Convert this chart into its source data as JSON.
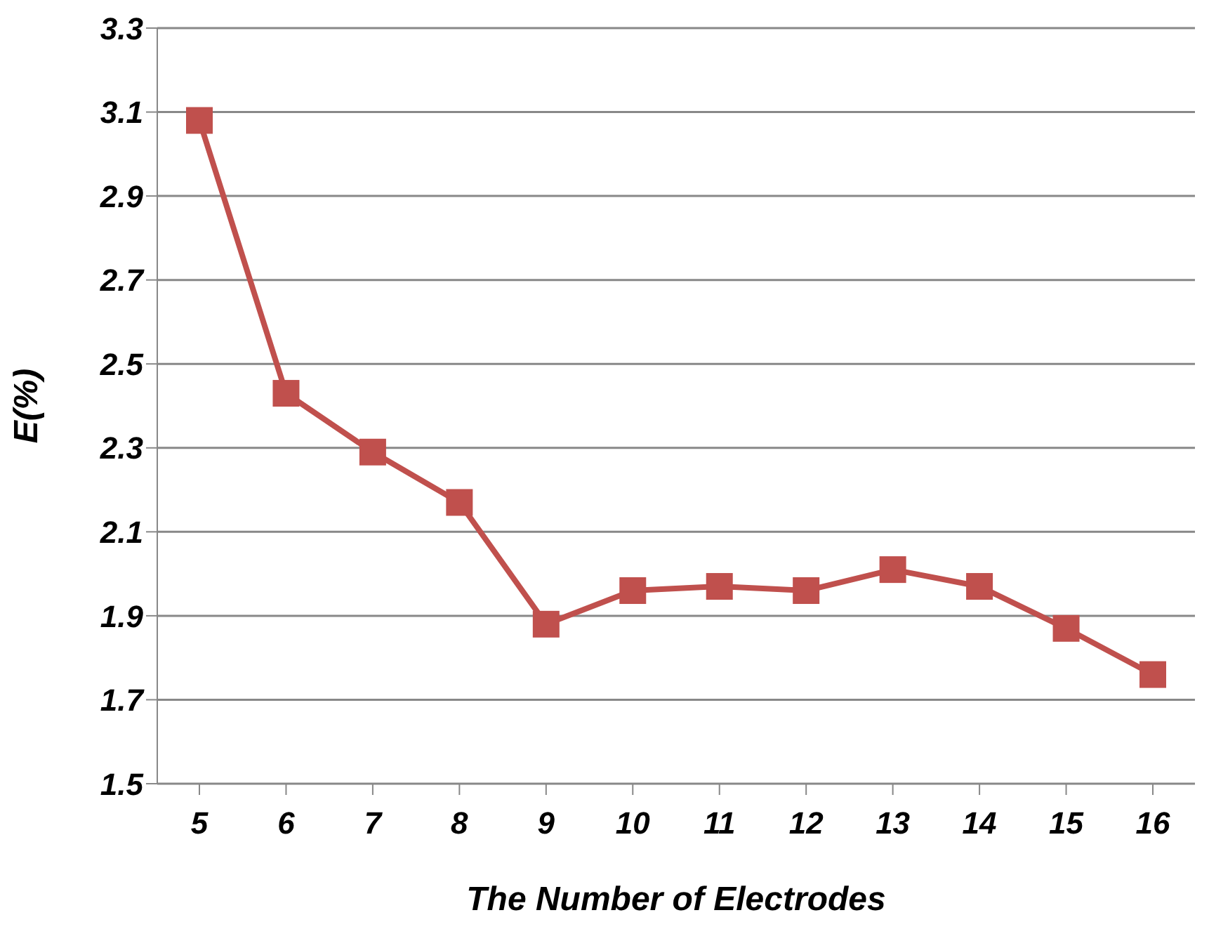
{
  "chart_data": {
    "type": "line",
    "xlabel": "The Number of Electrodes",
    "ylabel": "E(%)",
    "categories": [
      "5",
      "6",
      "7",
      "8",
      "9",
      "10",
      "11",
      "12",
      "13",
      "14",
      "15",
      "16"
    ],
    "series": [
      {
        "color": "#c0504d",
        "values": [
          3.08,
          2.43,
          2.29,
          2.17,
          1.88,
          1.96,
          1.97,
          1.96,
          2.01,
          1.97,
          1.87,
          1.76
        ]
      }
    ],
    "ylim": [
      1.5,
      3.3
    ],
    "yticks": [
      1.5,
      1.7,
      1.9,
      2.1,
      2.3,
      2.5,
      2.7,
      2.9,
      3.1,
      3.3
    ],
    "grid": "y",
    "marker": "square",
    "line_style": "solid"
  }
}
